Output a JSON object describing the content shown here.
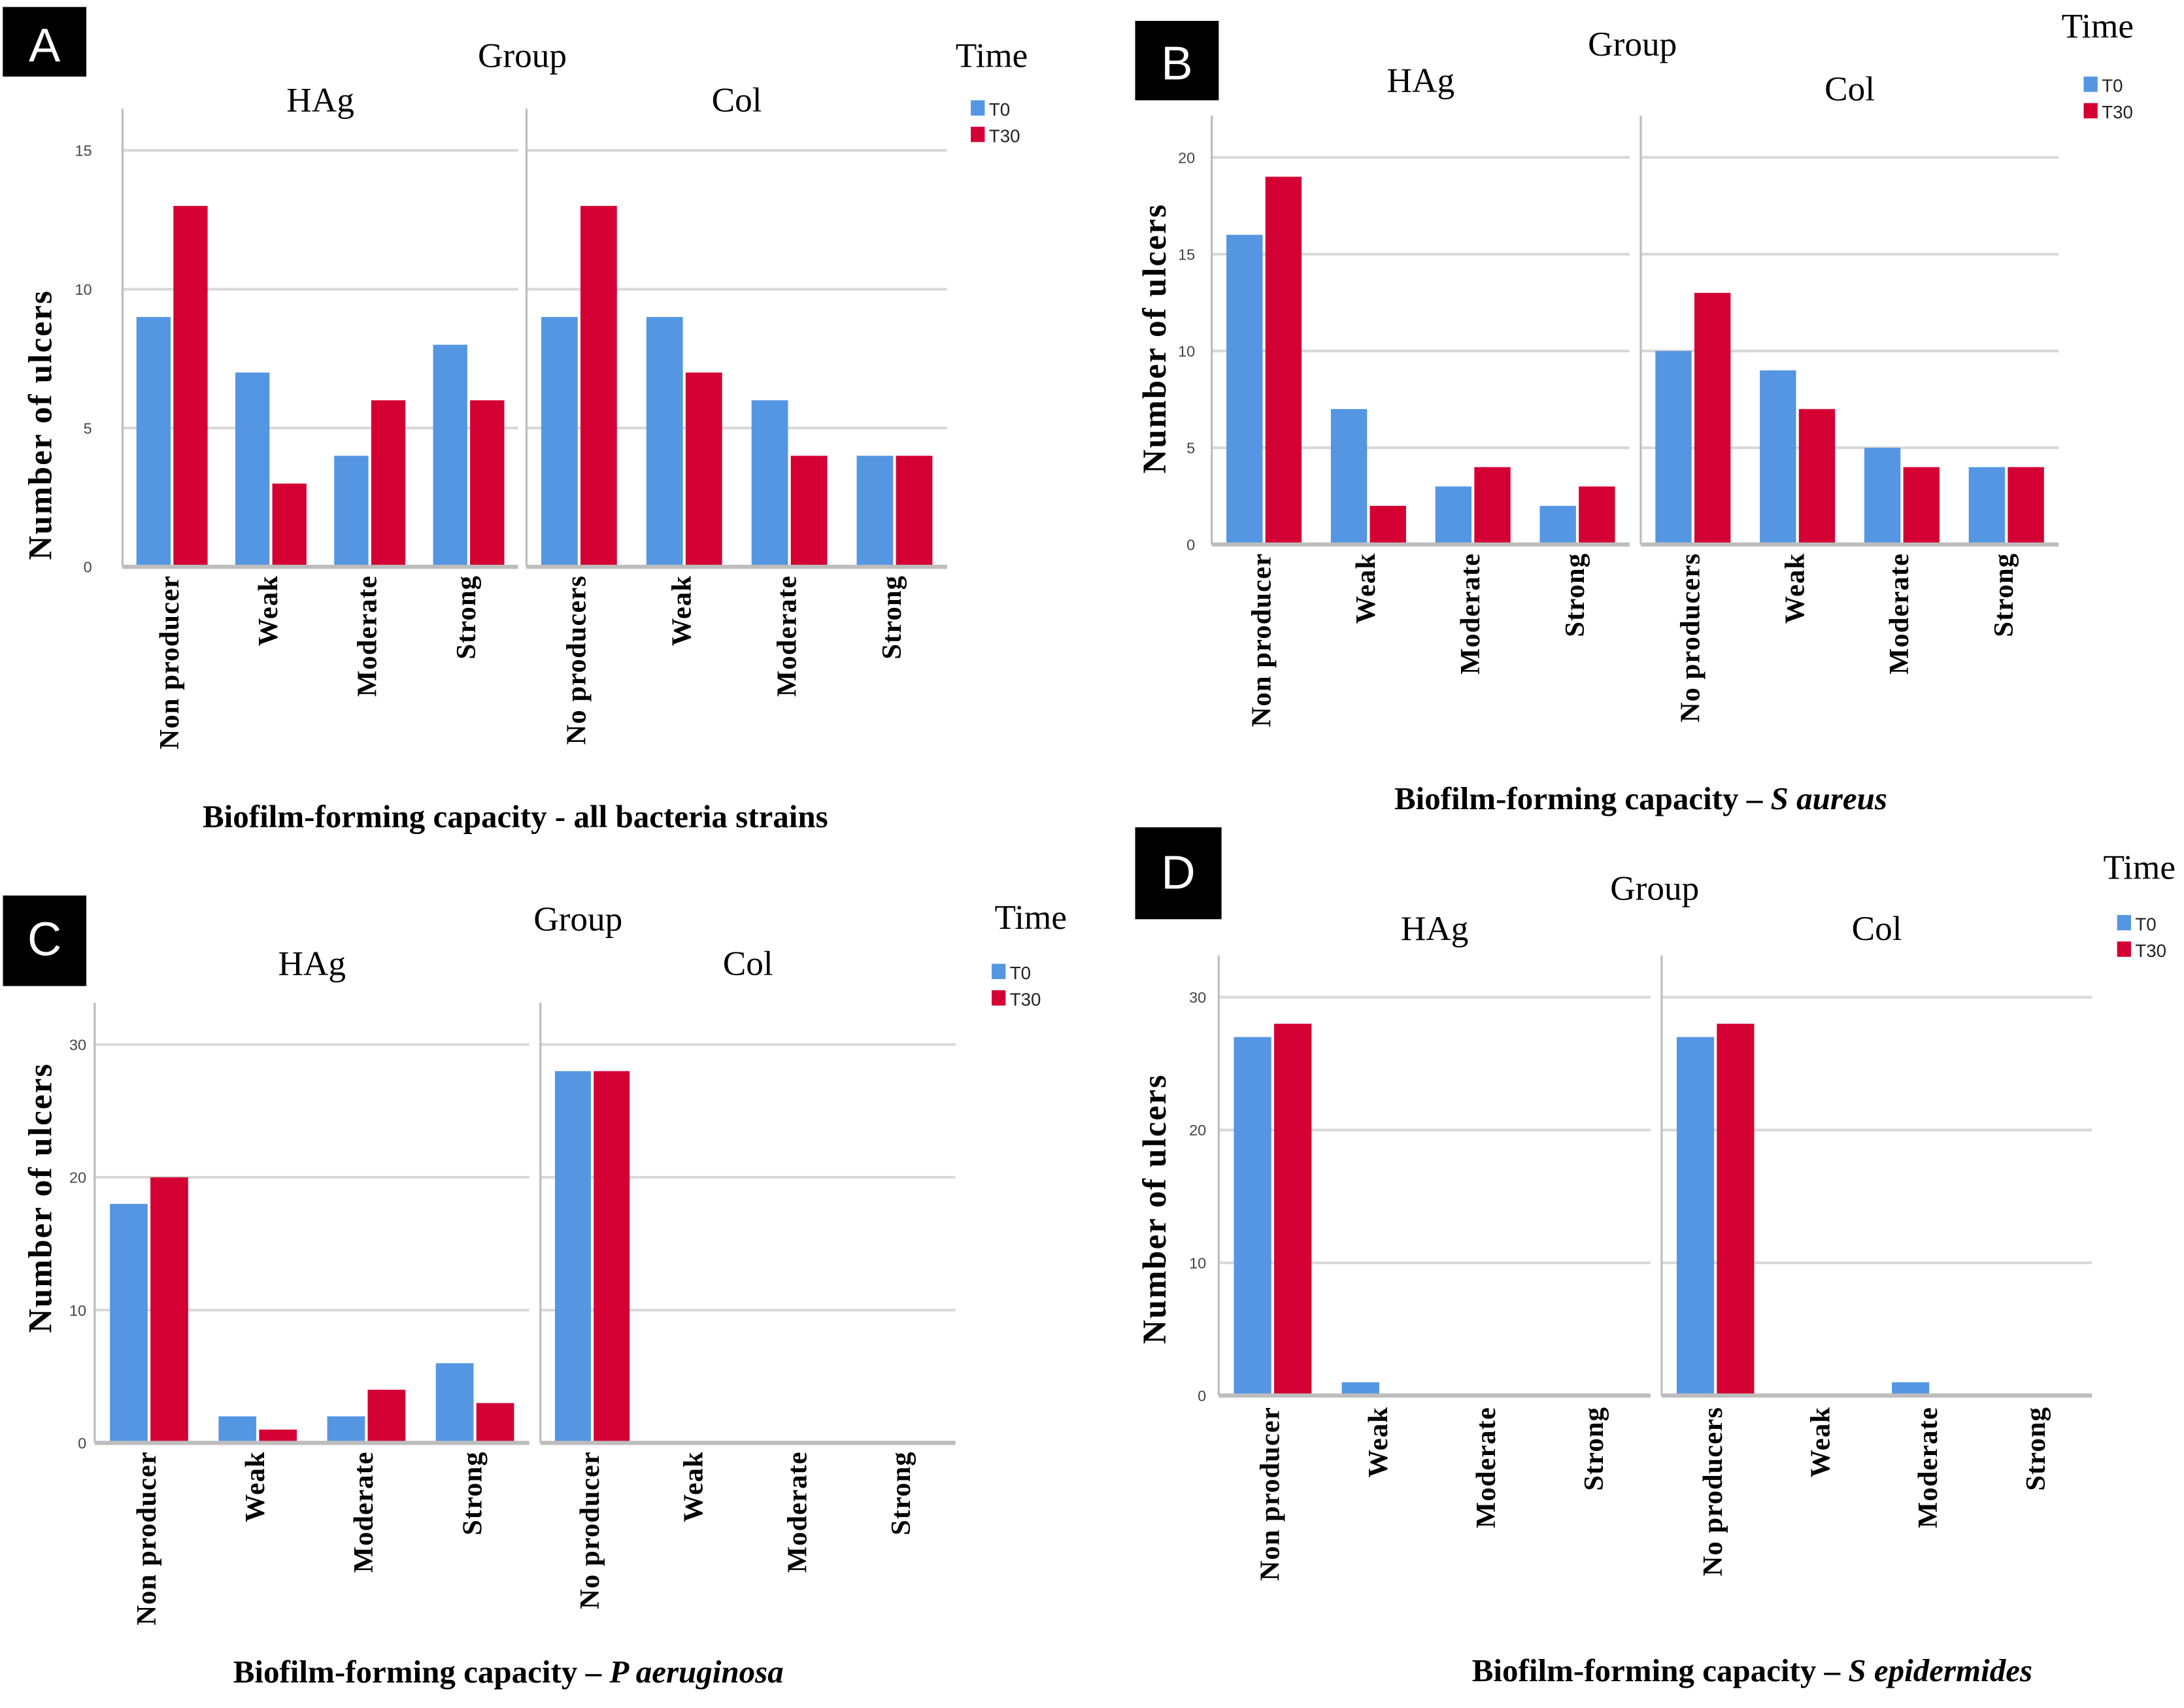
{
  "colors": {
    "t0": "#5596e2",
    "t30": "#d40034",
    "grid": "#d9d9d9",
    "axis": "#bdbdbd",
    "label_box": "#000000"
  },
  "chart_data": [
    {
      "type": "bar",
      "panel_label": "A",
      "facet_title": "Group",
      "legend_title": "Time",
      "legend": [
        "T0",
        "T30"
      ],
      "legend_position": "top-right",
      "ylabel": "Number of ulcers",
      "xlabel": "Biofilm-forming capacity - all bacteria strains",
      "xlabel_italic": "",
      "ylim": [
        0,
        15
      ],
      "yticks": [
        0,
        5,
        10,
        15
      ],
      "grid": true,
      "facets": [
        {
          "name": "HAg",
          "categories": [
            "Non producer",
            "Weak",
            "Moderate",
            "Strong"
          ],
          "series": [
            {
              "name": "T0",
              "values": [
                9,
                7,
                4,
                8
              ]
            },
            {
              "name": "T30",
              "values": [
                13,
                3,
                6,
                6
              ]
            }
          ]
        },
        {
          "name": "Col",
          "categories": [
            "No producers",
            "Weak",
            "Moderate",
            "Strong"
          ],
          "series": [
            {
              "name": "T0",
              "values": [
                9,
                9,
                6,
                4
              ]
            },
            {
              "name": "T30",
              "values": [
                13,
                7,
                4,
                4
              ]
            }
          ]
        }
      ]
    },
    {
      "type": "bar",
      "panel_label": "B",
      "facet_title": "Group",
      "legend_title": "Time",
      "legend": [
        "T0",
        "T30"
      ],
      "legend_position": "top-right",
      "ylabel": "Number of ulcers",
      "xlabel": "Biofilm-forming capacity – ",
      "xlabel_italic": "S aureus",
      "ylim": [
        0,
        20
      ],
      "yticks": [
        0,
        5,
        10,
        15,
        20
      ],
      "grid": true,
      "facets": [
        {
          "name": "HAg",
          "categories": [
            "Non producer",
            "Weak",
            "Moderate",
            "Strong"
          ],
          "series": [
            {
              "name": "T0",
              "values": [
                16,
                7,
                3,
                2
              ]
            },
            {
              "name": "T30",
              "values": [
                19,
                2,
                4,
                3
              ]
            }
          ]
        },
        {
          "name": "Col",
          "categories": [
            "No producers",
            "Weak",
            "Moderate",
            "Strong"
          ],
          "series": [
            {
              "name": "T0",
              "values": [
                10,
                9,
                5,
                4
              ]
            },
            {
              "name": "T30",
              "values": [
                13,
                7,
                4,
                4
              ]
            }
          ]
        }
      ]
    },
    {
      "type": "bar",
      "panel_label": "C",
      "facet_title": "Group",
      "legend_title": "Time",
      "legend": [
        "T0",
        "T30"
      ],
      "legend_position": "top-right",
      "ylabel": "Number of ulcers",
      "xlabel": "Biofilm-forming capacity – ",
      "xlabel_italic": "P aeruginosa",
      "ylim": [
        0,
        30
      ],
      "yticks": [
        0,
        10,
        20,
        30
      ],
      "grid": true,
      "facets": [
        {
          "name": "HAg",
          "categories": [
            "Non producer",
            "Weak",
            "Moderate",
            "Strong"
          ],
          "series": [
            {
              "name": "T0",
              "values": [
                18,
                2,
                2,
                6
              ]
            },
            {
              "name": "T30",
              "values": [
                20,
                1,
                4,
                3
              ]
            }
          ]
        },
        {
          "name": "Col",
          "categories": [
            "No producer",
            "Weak",
            "Moderate",
            "Strong"
          ],
          "series": [
            {
              "name": "T0",
              "values": [
                28,
                0,
                0,
                0
              ]
            },
            {
              "name": "T30",
              "values": [
                28,
                0,
                0,
                0
              ]
            }
          ]
        }
      ]
    },
    {
      "type": "bar",
      "panel_label": "D",
      "facet_title": "Group",
      "legend_title": "Time",
      "legend": [
        "T0",
        "T30"
      ],
      "legend_position": "top-right",
      "ylabel": "Number of ulcers",
      "xlabel": "Biofilm-forming capacity – ",
      "xlabel_italic": "S epidermides",
      "ylim": [
        0,
        30
      ],
      "yticks": [
        0,
        10,
        20,
        30
      ],
      "grid": true,
      "facets": [
        {
          "name": "HAg",
          "categories": [
            "Non producer",
            "Weak",
            "Moderate",
            "Strong"
          ],
          "series": [
            {
              "name": "T0",
              "values": [
                27,
                1,
                0,
                0
              ]
            },
            {
              "name": "T30",
              "values": [
                28,
                0,
                0,
                0
              ]
            }
          ]
        },
        {
          "name": "Col",
          "categories": [
            "No producers",
            "Weak",
            "Moderate",
            "Strong"
          ],
          "series": [
            {
              "name": "T0",
              "values": [
                27,
                0,
                1,
                0
              ]
            },
            {
              "name": "T30",
              "values": [
                28,
                0,
                0,
                0
              ]
            }
          ]
        }
      ]
    }
  ]
}
